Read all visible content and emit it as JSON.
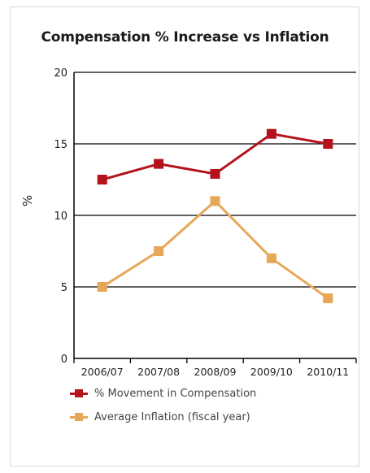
{
  "chart_data": {
    "type": "line",
    "title": "Compensation % Increase vs Inflation",
    "xlabel": "",
    "ylabel": "%",
    "categories": [
      "2006/07",
      "2007/08",
      "2008/09",
      "2009/10",
      "2010/11"
    ],
    "ylim": [
      0,
      20
    ],
    "yticks": [
      0,
      5,
      10,
      15,
      20
    ],
    "grid": true,
    "legend_position": "bottom",
    "series": [
      {
        "name": "% Movement in Compensation",
        "color": "#b5121b",
        "values": [
          12.5,
          13.6,
          12.9,
          15.7,
          15.0
        ]
      },
      {
        "name": "Average Inflation (fiscal year)",
        "color": "#e6a858",
        "values": [
          5.0,
          7.5,
          11.0,
          7.0,
          4.2
        ]
      }
    ]
  }
}
